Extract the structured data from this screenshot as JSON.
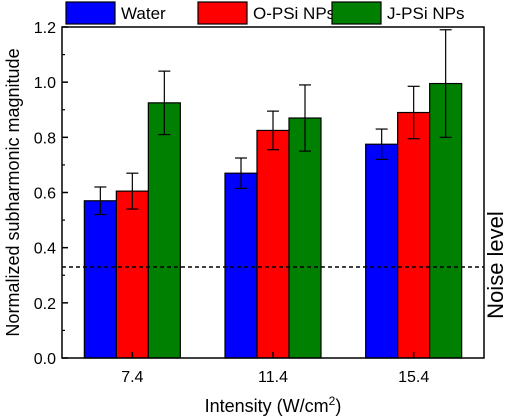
{
  "chart_data": {
    "type": "bar",
    "xlabel": "Intensity (W/cm",
    "xlabel_sup": "2",
    "xlabel_close": ")",
    "ylabel": "Normalized subharmonic magnitude",
    "ylim": [
      0.0,
      1.2
    ],
    "yticks": [
      "0.0",
      "0.2",
      "0.4",
      "0.6",
      "0.8",
      "1.0",
      "1.2"
    ],
    "categories": [
      "7.4",
      "11.4",
      "15.4"
    ],
    "series": [
      {
        "name": "Water",
        "color": "#0000ff",
        "values": [
          0.57,
          0.67,
          0.775
        ],
        "errors": [
          0.05,
          0.055,
          0.055
        ]
      },
      {
        "name": "O-PSi NPs",
        "color": "#ff0000",
        "values": [
          0.605,
          0.825,
          0.89
        ],
        "errors": [
          0.065,
          0.07,
          0.095
        ]
      },
      {
        "name": "J-PSi NPs",
        "color": "#008000",
        "values": [
          0.925,
          0.87,
          0.995
        ],
        "errors": [
          0.115,
          0.12,
          0.195
        ]
      }
    ],
    "noise_level": {
      "value": 0.33,
      "label": "Noise level"
    },
    "legend_position": "top"
  }
}
